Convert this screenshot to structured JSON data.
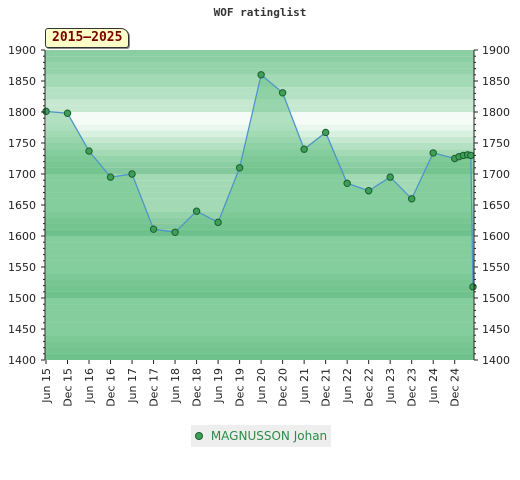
{
  "chart_data": {
    "type": "line",
    "title": "WOF ratinglist",
    "period_label": "2015–2025",
    "ylim": [
      1400,
      1900
    ],
    "y_ticks": [
      1400,
      1450,
      1500,
      1550,
      1600,
      1650,
      1700,
      1750,
      1800,
      1850,
      1900
    ],
    "x_tick_labels": [
      "Jun 15",
      "Dec 15",
      "Jun 16",
      "Dec 16",
      "Jun 17",
      "Dec 17",
      "Jun 18",
      "Dec 18",
      "Jun 19",
      "Dec 19",
      "Jun 20",
      "Dec 20",
      "Jun 21",
      "Dec 21",
      "Jun 22",
      "Dec 22",
      "Jun 23",
      "Dec 23",
      "Jun 24",
      "Dec 24"
    ],
    "legend_position": "bottom",
    "colors": {
      "line": "#4f95c8",
      "area": "#5fbf7f",
      "point": "#3e9f58",
      "point_stroke": "#1b5e2c"
    },
    "series": [
      {
        "name": "MAGNUSSON Johan",
        "x": [
          0,
          1,
          2,
          3,
          4,
          5,
          6,
          7,
          8,
          9,
          10,
          11,
          12,
          13,
          14,
          15,
          16,
          17,
          18,
          19,
          19.2,
          19.4,
          19.6,
          19.75,
          19.85
        ],
        "values": [
          1801,
          1798,
          1737,
          1695,
          1700,
          1611,
          1606,
          1640,
          1622,
          1710,
          1860,
          1831,
          1740,
          1767,
          1685,
          1673,
          1695,
          1660,
          1734,
          1725,
          1728,
          1730,
          1731,
          1730,
          1518
        ]
      }
    ]
  }
}
